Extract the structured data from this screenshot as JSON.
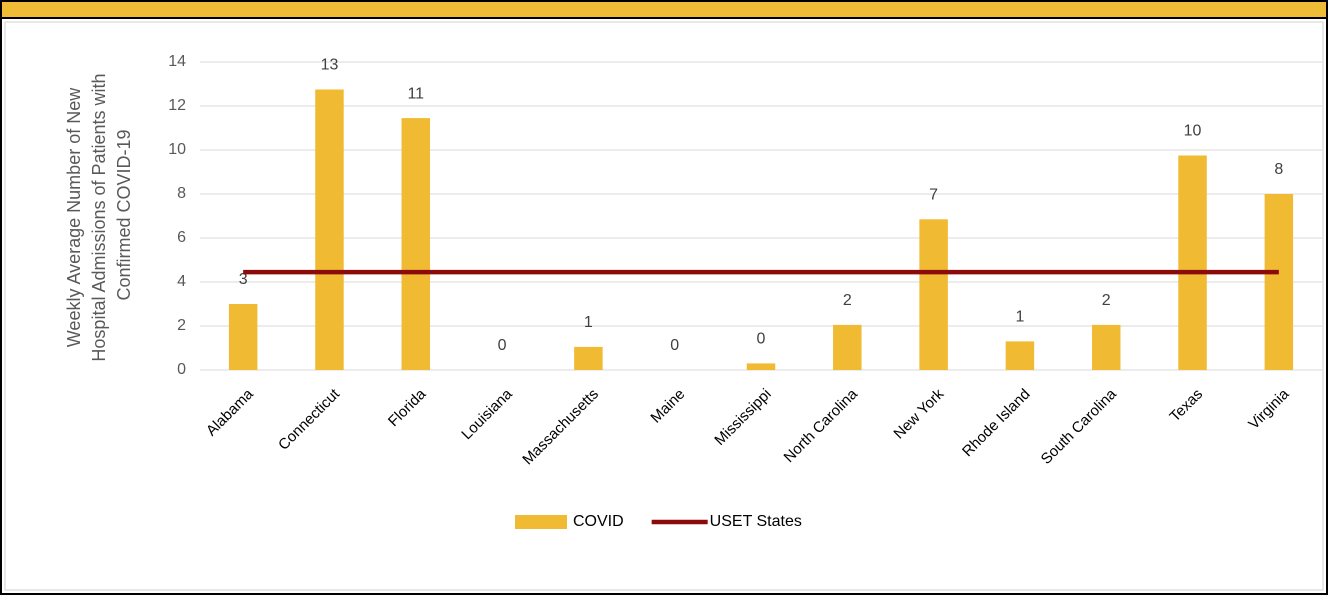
{
  "chart_data": {
    "type": "bar",
    "ylabel": [
      "Weekly Average Number of New",
      "Hospital Admissions of Patients with",
      "Confirmed COVID-19"
    ],
    "categories": [
      "Alabama",
      "Connecticut",
      "Florida",
      "Louisiana",
      "Massachusetts",
      "Maine",
      "Mississippi",
      "North Carolina",
      "New York",
      "Rhode Island",
      "South Carolina",
      "Texas",
      "Virginia"
    ],
    "series": [
      {
        "name": "COVID",
        "type": "bar",
        "color": "#f0bb32",
        "values": [
          3.0,
          12.75,
          11.45,
          0,
          1.05,
          0,
          0.3,
          2.05,
          6.85,
          1.3,
          2.05,
          9.75,
          8.0
        ],
        "value_labels": [
          "3",
          "13",
          "11",
          "0",
          "1",
          "0",
          "0",
          "2",
          "7",
          "1",
          "2",
          "10",
          "8"
        ]
      },
      {
        "name": "USET States",
        "type": "line",
        "color": "#8b0a0a",
        "values": [
          4.45,
          4.45,
          4.45,
          4.45,
          4.45,
          4.45,
          4.45,
          4.45,
          4.45,
          4.45,
          4.45,
          4.45,
          4.45
        ]
      }
    ],
    "ylim": [
      0,
      14
    ],
    "yticks": [
      0,
      2,
      4,
      6,
      8,
      10,
      12,
      14
    ],
    "grid": true,
    "legend": "bottom"
  }
}
